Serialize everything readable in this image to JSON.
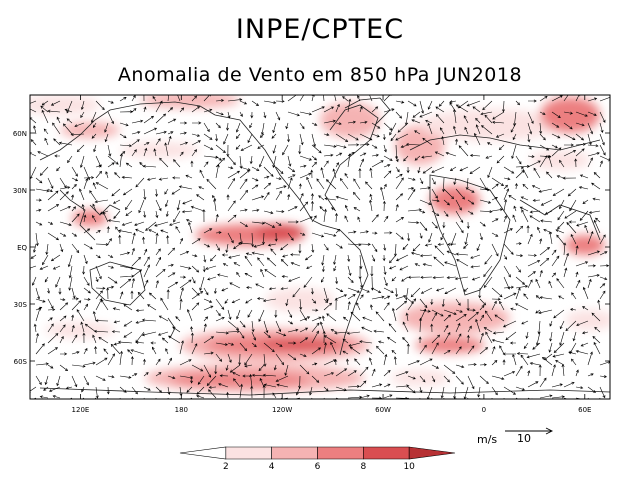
{
  "header": {
    "agency": "INPE/CPTEC",
    "subtitle": "Anomalia de Vento em 850 hPa JUN2018"
  },
  "map": {
    "lat_labels": [
      "60N",
      "30N",
      "EQ",
      "30S",
      "60S"
    ],
    "lon_labels": [
      "120E",
      "180",
      "120W",
      "60W",
      "0",
      "60E"
    ],
    "lat_values": [
      60,
      30,
      0,
      -30,
      -60
    ],
    "lon_values": [
      120,
      180,
      240,
      300,
      360,
      420
    ],
    "lon_range": [
      90,
      435
    ],
    "lat_range": [
      -80,
      80
    ],
    "shading_colors": [
      "#fbe2e2",
      "#f5b3b3",
      "#ec7f80",
      "#d94e51",
      "#b73134"
    ]
  },
  "vector_key": {
    "unit": "m/s",
    "value": "10"
  },
  "colorbar": {
    "tick_labels": [
      "2",
      "4",
      "6",
      "8",
      "10"
    ],
    "colors": [
      "#ffffff",
      "#fbe2e2",
      "#f5b3b3",
      "#ec7f80",
      "#d94e51",
      "#b73134"
    ]
  }
}
